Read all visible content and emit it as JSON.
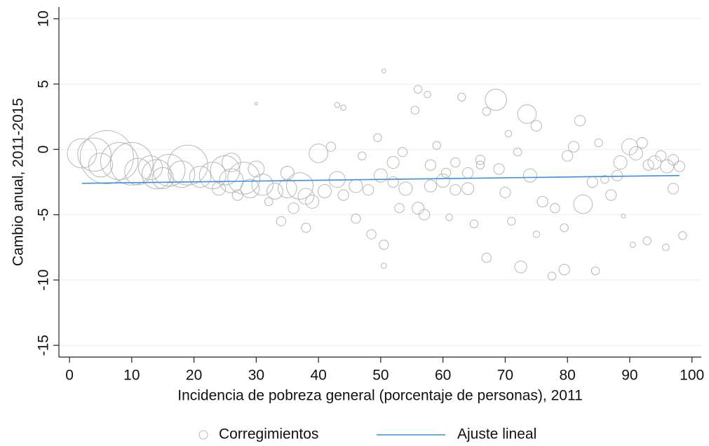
{
  "chart_data": {
    "type": "scatter",
    "x_label": "Incidencia de pobreza general (porcentaje de personas), 2011",
    "y_label": "Cambio anual, 2011-2015",
    "xlim": [
      -1.7,
      101.5
    ],
    "xticks": [
      0,
      10,
      20,
      30,
      40,
      50,
      60,
      70,
      80,
      90,
      100
    ],
    "ylim": [
      -15.9,
      10.9
    ],
    "yticks": [
      10,
      5,
      0,
      -5,
      -10,
      -15
    ],
    "grid": true,
    "legend": "bottom",
    "series": [
      {
        "name": "Corregimientos",
        "color": "#b8b8b8",
        "x": [
          2,
          4,
          6,
          5,
          8,
          10,
          11,
          13,
          14,
          16,
          18,
          19,
          21,
          23,
          25,
          26,
          28,
          29,
          31,
          33,
          35,
          37,
          38,
          40,
          41,
          43,
          44,
          46,
          48,
          50,
          52,
          54,
          56,
          58,
          60,
          62,
          64,
          66,
          68.5,
          73.5,
          75,
          82,
          82.5,
          72.5,
          79.5,
          77.5,
          84.5,
          67,
          50.5,
          48.5,
          50.5,
          50.5,
          30,
          43,
          44,
          56,
          57.5,
          63,
          67,
          55.5,
          49.5,
          59,
          70.5,
          88.5,
          90,
          91,
          92,
          93,
          94,
          95,
          96,
          97,
          98,
          97,
          98.5,
          95.8,
          92.8,
          90.5,
          89,
          87,
          76,
          78,
          79.5,
          75,
          71,
          65,
          61,
          57,
          53,
          46,
          38,
          34,
          36,
          32,
          27,
          24,
          30,
          35,
          62,
          69,
          74,
          80,
          84,
          86,
          88,
          70,
          64,
          58,
          52,
          47,
          53.5,
          60.5,
          66,
          81,
          72,
          85,
          42,
          39,
          26,
          15
        ],
        "values": [
          -0.3,
          -0.4,
          -0.6,
          -1.2,
          -0.9,
          -1.1,
          -1.7,
          -1.4,
          -1.9,
          -1.6,
          -1.9,
          -1.2,
          -2.1,
          -2.0,
          -1.6,
          -2.4,
          -2.2,
          -3.0,
          -2.7,
          -3.2,
          -3.0,
          -2.8,
          -3.6,
          -0.3,
          -3.2,
          -2.3,
          -3.5,
          -2.8,
          -3.1,
          -2.0,
          -2.5,
          -3.0,
          -4.5,
          -1.2,
          -2.4,
          -3.1,
          -1.8,
          -0.8,
          3.8,
          2.7,
          1.8,
          2.2,
          -4.2,
          -9.0,
          -9.2,
          -9.7,
          -9.3,
          -8.3,
          -7.3,
          -6.5,
          6.0,
          -8.9,
          3.5,
          3.4,
          3.2,
          4.6,
          4.2,
          4.0,
          2.9,
          3.0,
          0.9,
          0.3,
          1.2,
          -1.0,
          0.2,
          -0.3,
          0.5,
          -1.2,
          -1.0,
          -0.5,
          -1.3,
          -0.8,
          -1.3,
          -3.0,
          -6.6,
          -7.5,
          -7.0,
          -7.3,
          -5.1,
          -3.5,
          -4.0,
          -4.5,
          -6.0,
          -6.5,
          -5.5,
          -5.7,
          -5.2,
          -5.0,
          -4.5,
          -5.3,
          -6.0,
          -5.5,
          -4.5,
          -4.0,
          -3.5,
          -3.0,
          -1.5,
          -1.8,
          -1.0,
          -1.5,
          -2.0,
          -0.5,
          -2.5,
          -2.3,
          -2.0,
          -3.3,
          -3.0,
          -2.8,
          -1.0,
          -0.5,
          -0.2,
          -1.8,
          -1.2,
          0.2,
          -0.2,
          0.5,
          0.2,
          -4.0,
          -1.0,
          -2.2
        ],
        "sizes": [
          22,
          25,
          40,
          18,
          28,
          32,
          20,
          18,
          22,
          24,
          20,
          30,
          16,
          20,
          22,
          18,
          24,
          14,
          16,
          12,
          14,
          20,
          12,
          14,
          10,
          12,
          8,
          10,
          8,
          10,
          8,
          10,
          9,
          8,
          10,
          8,
          8,
          7,
          16,
          14,
          8,
          8,
          14,
          9,
          8,
          6,
          6,
          7,
          7,
          7,
          3,
          4,
          2,
          4,
          4,
          6,
          5,
          6,
          6,
          6,
          6,
          6,
          5,
          10,
          12,
          10,
          8,
          8,
          10,
          8,
          10,
          8,
          8,
          8,
          6,
          5,
          6,
          4,
          3,
          8,
          8,
          7,
          6,
          5,
          6,
          6,
          5,
          8,
          7,
          7,
          7,
          7,
          8,
          6,
          8,
          10,
          12,
          10,
          7,
          8,
          10,
          8,
          8,
          6,
          8,
          8,
          9,
          9,
          9,
          6,
          7,
          7,
          6,
          8,
          6,
          6,
          7,
          10,
          14,
          16
        ]
      },
      {
        "name": "Ajuste lineal",
        "type": "line",
        "color": "#3d8fe0",
        "x": [
          2,
          98
        ],
        "values": [
          -2.6,
          -2.0
        ]
      }
    ]
  }
}
